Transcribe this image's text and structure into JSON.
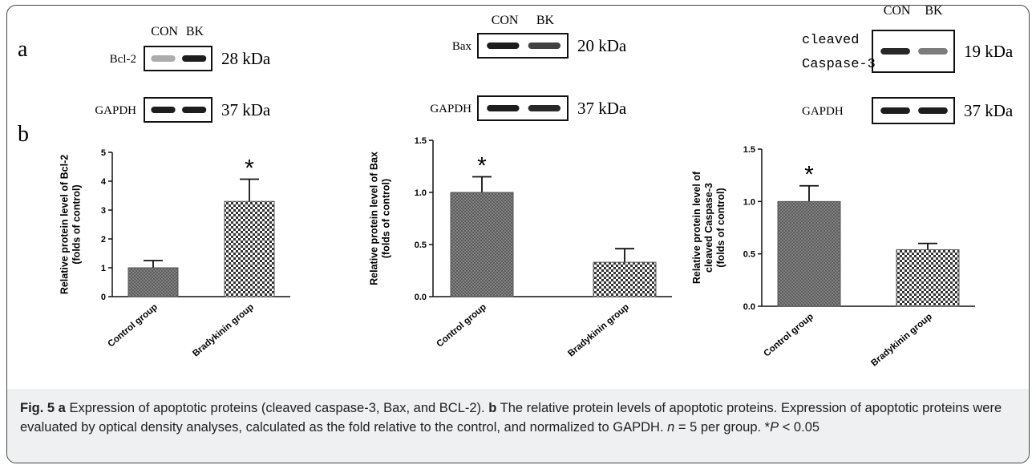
{
  "panel_labels": [
    "a",
    "b"
  ],
  "blots": [
    {
      "lanes": [
        "CON",
        "BK"
      ],
      "rows": [
        {
          "label": [
            "Bcl-2"
          ],
          "size": "28 kDa"
        },
        {
          "label": [
            "GAPDH"
          ],
          "size": "37 kDa"
        }
      ]
    },
    {
      "lanes": [
        "CON",
        "BK"
      ],
      "rows": [
        {
          "label": [
            "Bax"
          ],
          "size": "20 kDa"
        },
        {
          "label": [
            "GAPDH"
          ],
          "size": "37 kDa"
        }
      ]
    },
    {
      "lanes": [
        "CON",
        "BK"
      ],
      "rows": [
        {
          "label": [
            "cleaved",
            "Caspase-3"
          ],
          "size": "19 kDa"
        },
        {
          "label": [
            "GAPDH"
          ],
          "size": "37 kDa"
        }
      ]
    }
  ],
  "chart_data": [
    {
      "type": "bar",
      "ylabel": [
        "Relative protein level of Bcl-2",
        "(folds of control)"
      ],
      "categories": [
        "Control group",
        "Bradykinin group"
      ],
      "values": [
        1.0,
        3.3
      ],
      "errors": [
        0.25,
        0.77
      ],
      "color": "#555555",
      "ylim": [
        0,
        5
      ],
      "yticks": [
        0,
        1,
        2,
        3,
        4,
        5
      ],
      "annotations": [
        {
          "text": "*",
          "category": "Bradykinin group"
        }
      ]
    },
    {
      "type": "bar",
      "ylabel": [
        "Relative protein level of Bax",
        "(folds of control)"
      ],
      "categories": [
        "Control group",
        "Bradykinin group"
      ],
      "values": [
        1.0,
        0.33
      ],
      "errors": [
        0.15,
        0.13
      ],
      "color": "#555555",
      "ylim": [
        0,
        1.5
      ],
      "yticks": [
        {
          "value": 0,
          "label": "0.0"
        },
        0.5,
        {
          "value": 1,
          "label": "1.0"
        },
        1.5
      ],
      "annotations": [
        {
          "text": "*",
          "category": "Control group"
        }
      ]
    },
    {
      "type": "bar",
      "ylabel": [
        "Relative protein level of",
        "cleaved Caspase-3",
        "(folds of control)"
      ],
      "categories": [
        "Control group",
        "Bradykinin group"
      ],
      "values": [
        1.0,
        0.54
      ],
      "errors": [
        0.15,
        0.06
      ],
      "color": "#555555",
      "ylim": [
        0,
        1.5
      ],
      "yticks": [
        {
          "value": 0,
          "label": "0.0"
        },
        0.5,
        {
          "value": 1,
          "label": "1.0"
        },
        1.5
      ],
      "annotations": [
        {
          "text": "*",
          "category": "Control group"
        }
      ]
    }
  ],
  "caption": [
    {
      "text": "Fig. 5 a",
      "style": "bold"
    },
    {
      "text": " Expression of apoptotic proteins (cleaved caspase-3, Bax, and BCL-2). ",
      "style": "normal"
    },
    {
      "text": "b",
      "style": "bold"
    },
    {
      "text": " The relative protein levels of apoptotic proteins. Expression of apoptotic proteins were evaluated by optical density analyses, calculated as the fold relative to the control, and normalized to GAPDH. ",
      "style": "normal"
    },
    {
      "text": "n",
      "style": "italic"
    },
    {
      "text": " = 5 per group. *",
      "style": "normal"
    },
    {
      "text": "P",
      "style": "italic"
    },
    {
      "text": " < 0.05",
      "style": "normal"
    }
  ]
}
